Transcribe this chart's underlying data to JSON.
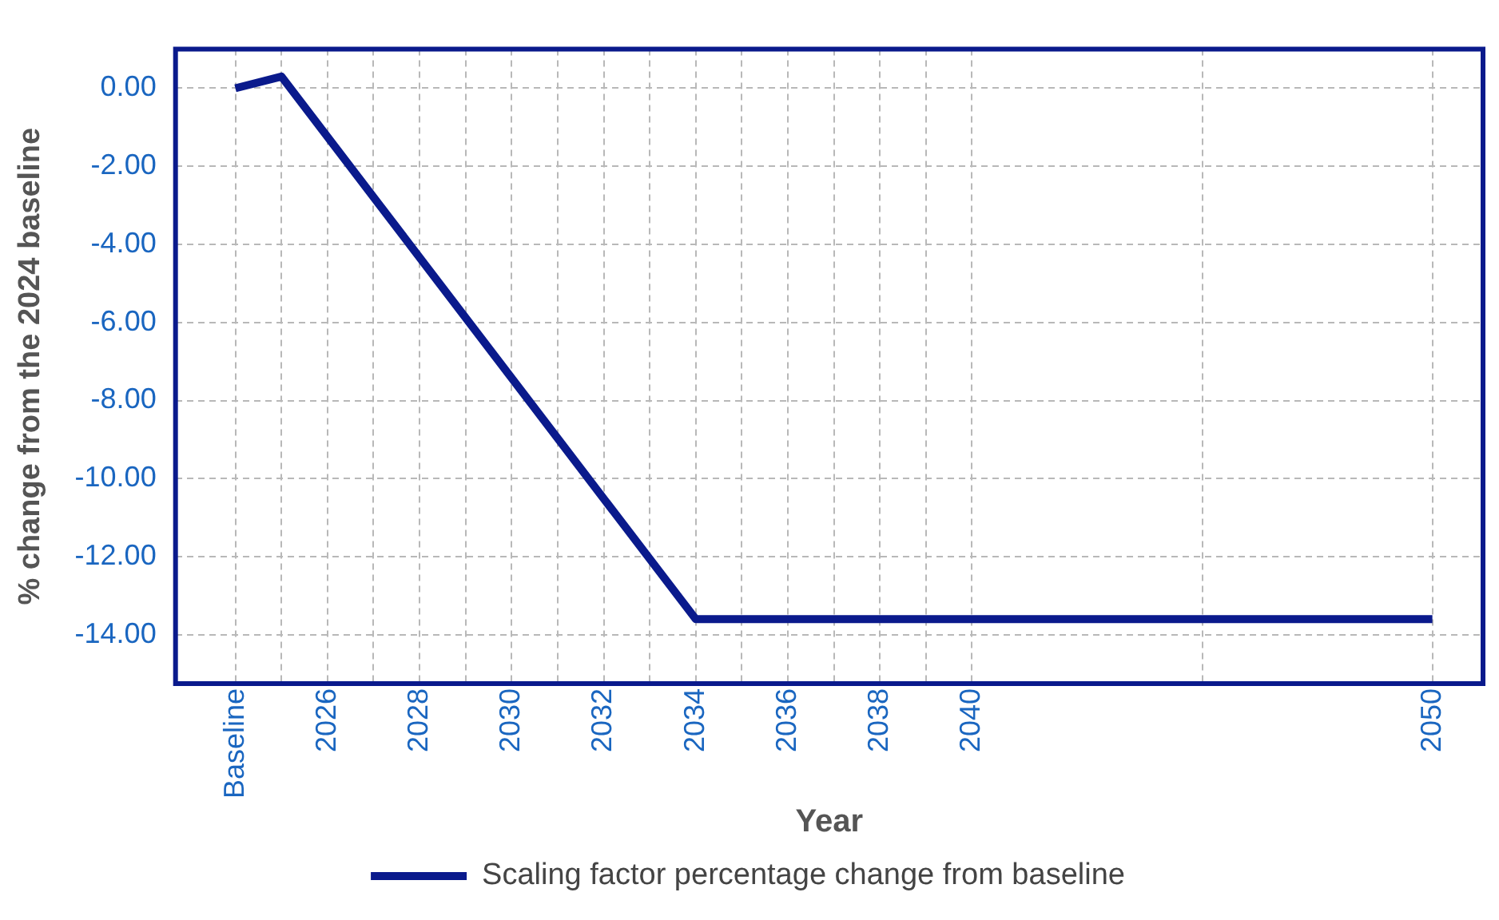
{
  "chart_data": {
    "type": "line",
    "xlabel": "Year",
    "ylabel": "% change from the 2024 baseline",
    "x": [
      2024,
      2025,
      2034,
      2050
    ],
    "series": [
      {
        "name": "Scaling factor percentage change from baseline",
        "color": "#0a1a8c",
        "values": [
          0,
          0.3,
          -13.6,
          -13.6
        ]
      }
    ],
    "xlim": [
      2022.7,
      2051.1
    ],
    "xticks": [
      {
        "value": 2024,
        "label": "Baseline"
      },
      {
        "value": 2025,
        "label": null
      },
      2026,
      {
        "value": 2027,
        "label": null
      },
      2028,
      {
        "value": 2029,
        "label": null
      },
      2030,
      {
        "value": 2031,
        "label": null
      },
      2032,
      {
        "value": 2033,
        "label": null
      },
      2034,
      {
        "value": 2035,
        "label": null
      },
      2036,
      {
        "value": 2037,
        "label": null
      },
      2038,
      {
        "value": 2039,
        "label": null
      },
      2040,
      {
        "value": 2045,
        "label": null
      },
      2050
    ],
    "ylim": [
      -15.25,
      1
    ],
    "yticks": [
      {
        "value": 0,
        "label": "0.00"
      },
      {
        "value": -2,
        "label": "-2.00"
      },
      {
        "value": -4,
        "label": "-4.00"
      },
      {
        "value": -6,
        "label": "-6.00"
      },
      {
        "value": -8,
        "label": "-8.00"
      },
      {
        "value": -10,
        "label": "-10.00"
      },
      {
        "value": -12,
        "label": "-12.00"
      },
      {
        "value": -14,
        "label": "-14.00"
      }
    ],
    "grid": true,
    "legend": "bottom",
    "marker": "none",
    "line_style": "solid"
  }
}
